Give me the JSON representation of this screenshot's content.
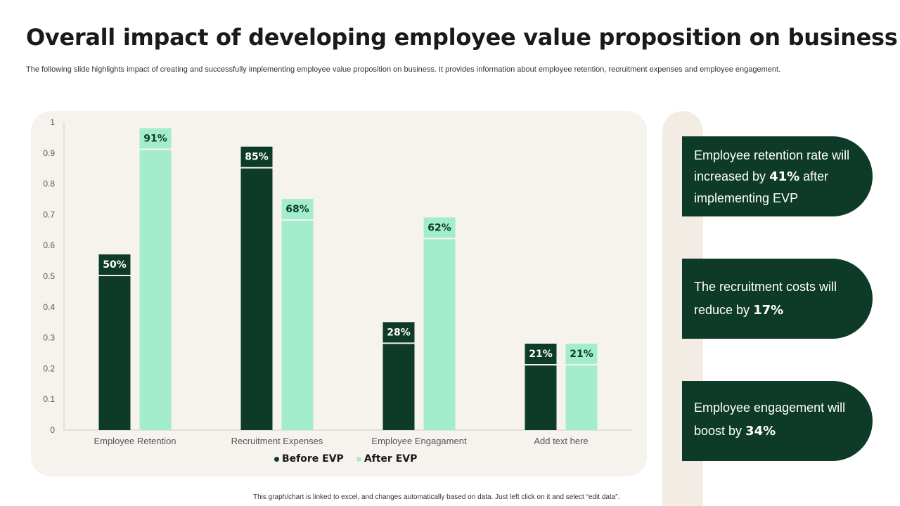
{
  "header": {
    "title": "Overall impact of developing employee value proposition on business",
    "subtitle": "The following slide highlights impact of creating and successfully implementing employee value proposition on business. It provides information about employee retention, recruitment expenses and employee engagement."
  },
  "chart_data": {
    "type": "bar",
    "categories": [
      "Employee Retention",
      "Recruitment Expenses",
      "Employee Engagament",
      "Add text here"
    ],
    "series": [
      {
        "name": "Before EVP",
        "values": [
          0.5,
          0.85,
          0.28,
          0.21
        ],
        "labels": [
          "50%",
          "85%",
          "28%",
          "21%"
        ],
        "color": "#0d3b27"
      },
      {
        "name": "After EVP",
        "values": [
          0.91,
          0.68,
          0.62,
          0.21
        ],
        "labels": [
          "91%",
          "68%",
          "62%",
          "21%"
        ],
        "color": "#a3ecce"
      }
    ],
    "yticks": [
      "0",
      "0.1",
      "0.2",
      "0.3",
      "0.4",
      "0.5",
      "0.6",
      "0.7",
      "0.8",
      "0.9",
      "1"
    ],
    "ylim": [
      0,
      1
    ],
    "legend_position": "bottom",
    "grid": false
  },
  "cards": [
    {
      "pre": "Employee retention rate will increased by ",
      "highlight": "41%",
      "post": " after implementing EVP"
    },
    {
      "pre": "The recruitment costs will reduce by ",
      "highlight": "17%",
      "post": ""
    },
    {
      "pre": "Employee engagement will boost by ",
      "highlight": "34%",
      "post": ""
    }
  ],
  "footnote": "This graph/chart is linked to excel, and changes automatically based on data. Just left click on it and select “edit data”.",
  "colors": {
    "dark_green": "#0d3b27",
    "light_green": "#a3ecce",
    "panel_bg": "#f6f3ee"
  }
}
